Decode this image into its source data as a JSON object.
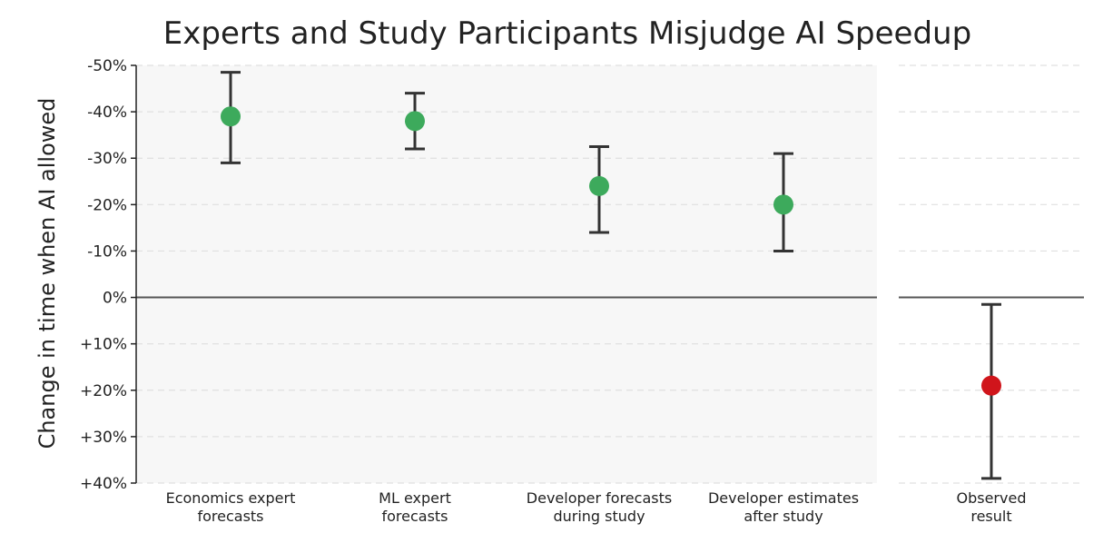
{
  "chart_data": {
    "type": "scatter",
    "title": "Experts and Study Participants Misjudge AI Speedup",
    "ylabel": "Change in time when AI allowed",
    "ylim": [
      -50,
      40
    ],
    "y_axis_inverted": true,
    "y_ticks": [
      -50,
      -40,
      -30,
      -20,
      -10,
      0,
      10,
      20,
      30,
      40
    ],
    "y_tick_labels": [
      "-50%",
      "-40%",
      "-30%",
      "-20%",
      "-10%",
      "0%",
      "+10%",
      "+20%",
      "+30%",
      "+40%"
    ],
    "grid": "horizontal dashed",
    "reference_line": 0,
    "panels": [
      {
        "name": "forecasts",
        "background": "#f7f7f7",
        "points": [
          {
            "label_lines": [
              "Economics expert",
              "forecasts"
            ],
            "value": -39,
            "low": -48.5,
            "high": -29,
            "color": "#3daa5c"
          },
          {
            "label_lines": [
              "ML expert",
              "forecasts"
            ],
            "value": -38,
            "low": -44,
            "high": -32,
            "color": "#3daa5c"
          },
          {
            "label_lines": [
              "Developer forecasts",
              "during study"
            ],
            "value": -24,
            "low": -32.5,
            "high": -14,
            "color": "#3daa5c"
          },
          {
            "label_lines": [
              "Developer estimates",
              "after study"
            ],
            "value": -20,
            "low": -31,
            "high": -10,
            "color": "#3daa5c"
          }
        ]
      },
      {
        "name": "observed",
        "background": "#ffffff",
        "points": [
          {
            "label_lines": [
              "Observed",
              "result"
            ],
            "value": 19,
            "low": 1.5,
            "high": 39,
            "color": "#d0151b"
          }
        ]
      }
    ]
  }
}
